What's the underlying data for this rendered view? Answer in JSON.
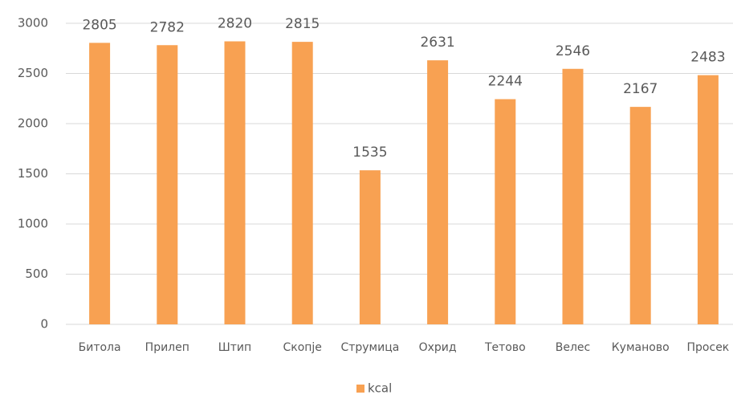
{
  "chart_data": {
    "type": "bar",
    "categories": [
      "Битола",
      "Прилеп",
      "Штип",
      "Скопје",
      "Струмица",
      "Охрид",
      "Тетово",
      "Велес",
      "Куманово",
      "Просек"
    ],
    "series": [
      {
        "name": "kcal",
        "color": "#f8a152",
        "values": [
          2805,
          2782,
          2820,
          2815,
          1535,
          2631,
          2244,
          2546,
          2167,
          2483
        ]
      }
    ],
    "ylim": [
      0,
      3000
    ],
    "yticks": [
      0,
      500,
      1000,
      1500,
      2000,
      2500,
      3000
    ],
    "grid": true,
    "legend": "bottom"
  }
}
